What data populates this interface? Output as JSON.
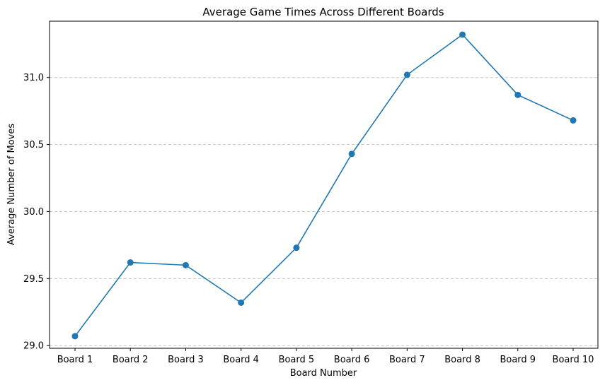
{
  "chart_data": {
    "type": "line",
    "title": "Average Game Times Across Different Boards",
    "xlabel": "Board Number",
    "ylabel": "Average Number of Moves",
    "categories": [
      "Board 1",
      "Board 2",
      "Board 3",
      "Board 4",
      "Board 5",
      "Board 6",
      "Board 7",
      "Board 8",
      "Board 9",
      "Board 10"
    ],
    "series": [
      {
        "values": [
          29.07,
          29.62,
          29.6,
          29.32,
          29.73,
          30.43,
          31.02,
          31.32,
          30.87,
          30.68
        ],
        "color": "#1f77b4",
        "marker": "circle"
      }
    ],
    "ylim": [
      28.98,
      31.42
    ],
    "yticks": [
      29.0,
      29.5,
      30.0,
      30.5,
      31.0
    ],
    "ytick_labels": [
      "29.0",
      "29.5",
      "30.0",
      "30.5",
      "31.0"
    ],
    "grid": {
      "axis": "y",
      "style": "dashed",
      "color": "#c8c8c8"
    }
  }
}
